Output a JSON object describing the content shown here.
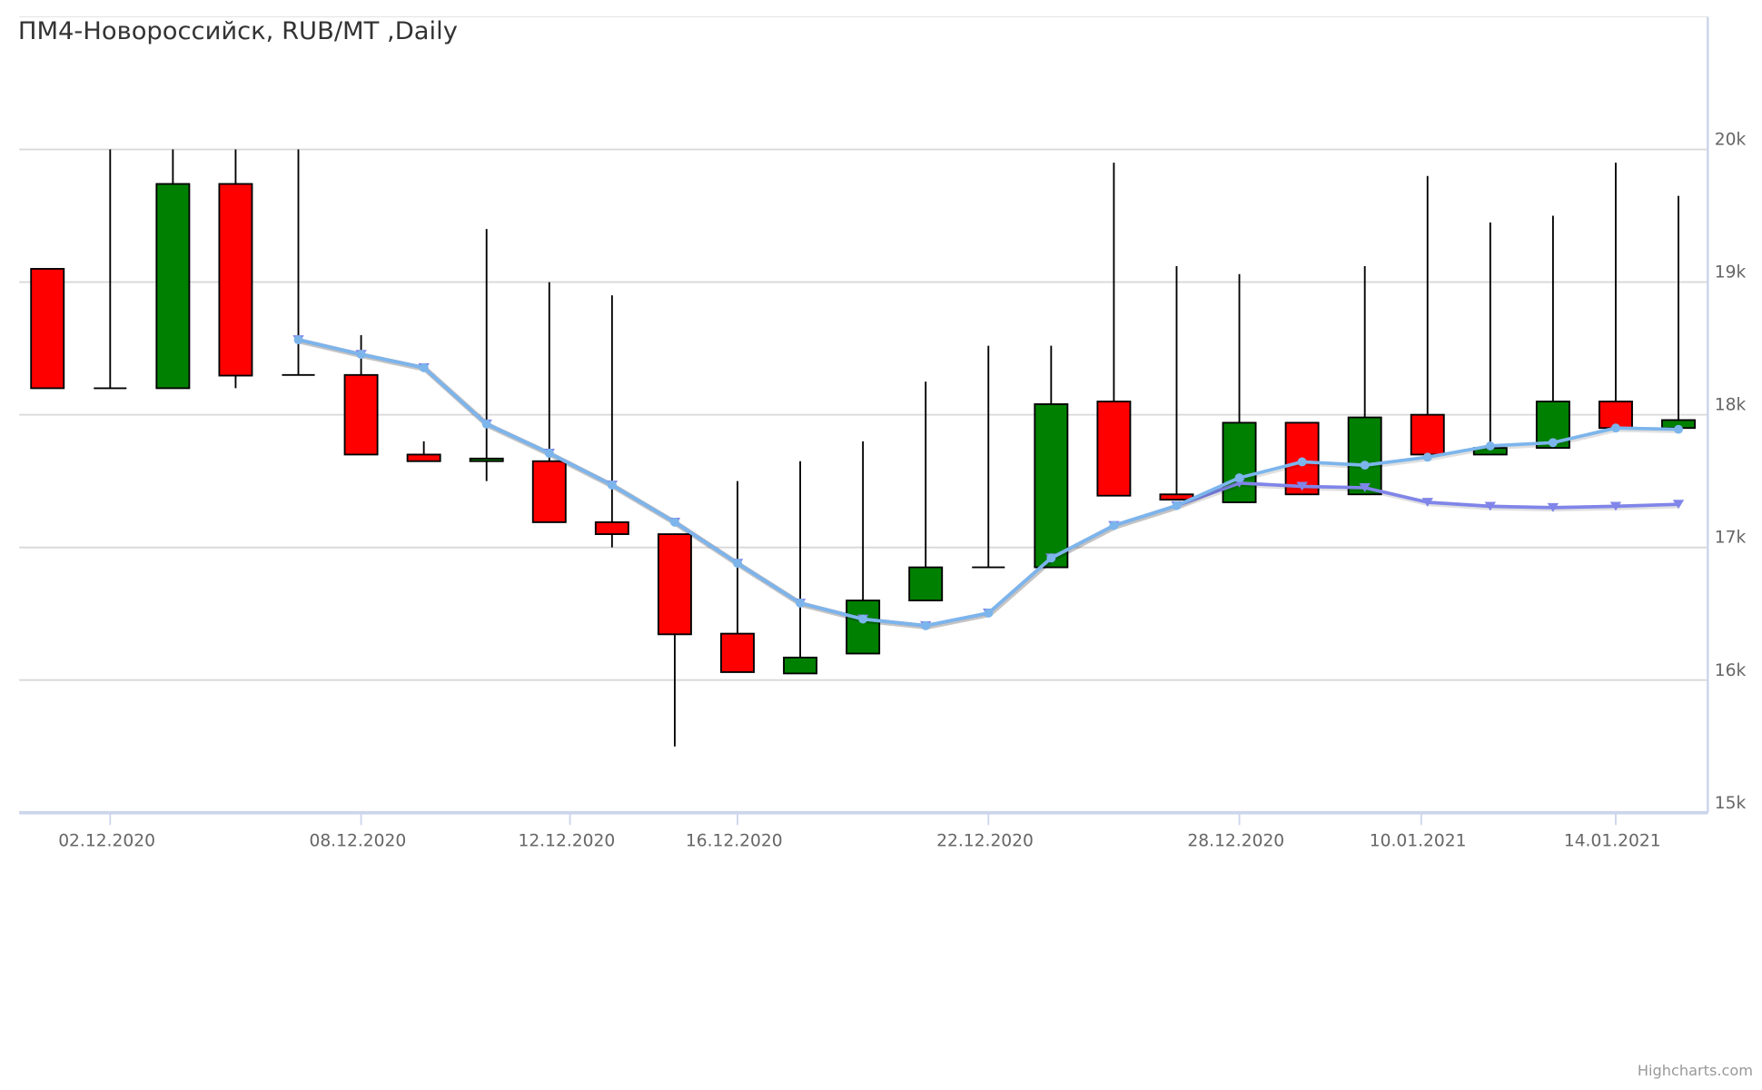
{
  "chart_data": {
    "type": "candlestick",
    "title": "ПМ4-Новороссийск, RUB/MT ,Daily",
    "ylim": [
      15000,
      21000
    ],
    "yticks": [
      15000,
      16000,
      17000,
      18000,
      19000,
      20000
    ],
    "ytick_labels": [
      "15k",
      "16k",
      "17k",
      "18k",
      "19k",
      "20k"
    ],
    "yaxis_side": "right",
    "grid": true,
    "xticks": [
      {
        "index": 1,
        "label": "02.12.2020"
      },
      {
        "index": 5,
        "label": "08.12.2020"
      },
      {
        "index": 8.33,
        "label": "12.12.2020"
      },
      {
        "index": 11,
        "label": "16.12.2020"
      },
      {
        "index": 15,
        "label": "22.12.2020"
      },
      {
        "index": 19,
        "label": "28.12.2020"
      },
      {
        "index": 21.9,
        "label": "10.01.2021"
      },
      {
        "index": 25,
        "label": "14.01.2021"
      }
    ],
    "ohlc": [
      [
        19100,
        19100,
        18200,
        18200
      ],
      [
        18200,
        20000,
        18200,
        18200
      ],
      [
        18200,
        20000,
        18200,
        19740
      ],
      [
        19740,
        20000,
        18200,
        18295
      ],
      [
        18300,
        20000,
        18300,
        18300
      ],
      [
        18300,
        18600,
        17700,
        17700
      ],
      [
        17700,
        17800,
        17650,
        17650
      ],
      [
        17650,
        19400,
        17500,
        17670
      ],
      [
        17650,
        19000,
        17190,
        17190
      ],
      [
        17190,
        18900,
        17000,
        17100
      ],
      [
        17100,
        17100,
        15500,
        16345
      ],
      [
        16350,
        17500,
        16060,
        16060
      ],
      [
        16050,
        17650,
        16050,
        16170
      ],
      [
        16200,
        17800,
        16200,
        16600
      ],
      [
        16600,
        18250,
        16600,
        16850
      ],
      [
        16850,
        18520,
        16850,
        16850
      ],
      [
        16850,
        18520,
        16850,
        18080
      ],
      [
        18100,
        19900,
        17390,
        17390
      ],
      [
        17400,
        19120,
        17360,
        17360
      ],
      [
        17340,
        19060,
        17340,
        17940
      ],
      [
        17940,
        17940,
        17400,
        17400
      ],
      [
        17400,
        19120,
        17400,
        17980
      ],
      [
        18000,
        19800,
        17700,
        17700
      ],
      [
        17700,
        19450,
        17700,
        17750
      ],
      [
        17750,
        19500,
        17750,
        18100
      ],
      [
        18100,
        19900,
        17900,
        17900
      ],
      [
        17900,
        19650,
        17900,
        17960
      ]
    ],
    "up_color": "#008000",
    "down_color": "#ff0000",
    "series": [
      {
        "name": "",
        "marker": "triangle-down",
        "color": "#8085e9",
        "start_index": 4,
        "values": [
          18565,
          18455,
          18355,
          17930,
          17710,
          17470,
          17190,
          16880,
          16580,
          16460,
          16410,
          16505,
          16920,
          17165,
          17315,
          17485,
          17460,
          17450,
          17340,
          17310,
          17300,
          17310,
          17325
        ]
      },
      {
        "name": "",
        "marker": "circle",
        "color": "#7cb5ec",
        "start_index": 4,
        "values": [
          18565,
          18455,
          18355,
          17930,
          17710,
          17470,
          17190,
          16880,
          16580,
          16460,
          16410,
          16505,
          16920,
          17165,
          17315,
          17525,
          17645,
          17620,
          17680,
          17765,
          17790,
          17900,
          17890
        ]
      }
    ],
    "credits": "Highcharts.com"
  }
}
